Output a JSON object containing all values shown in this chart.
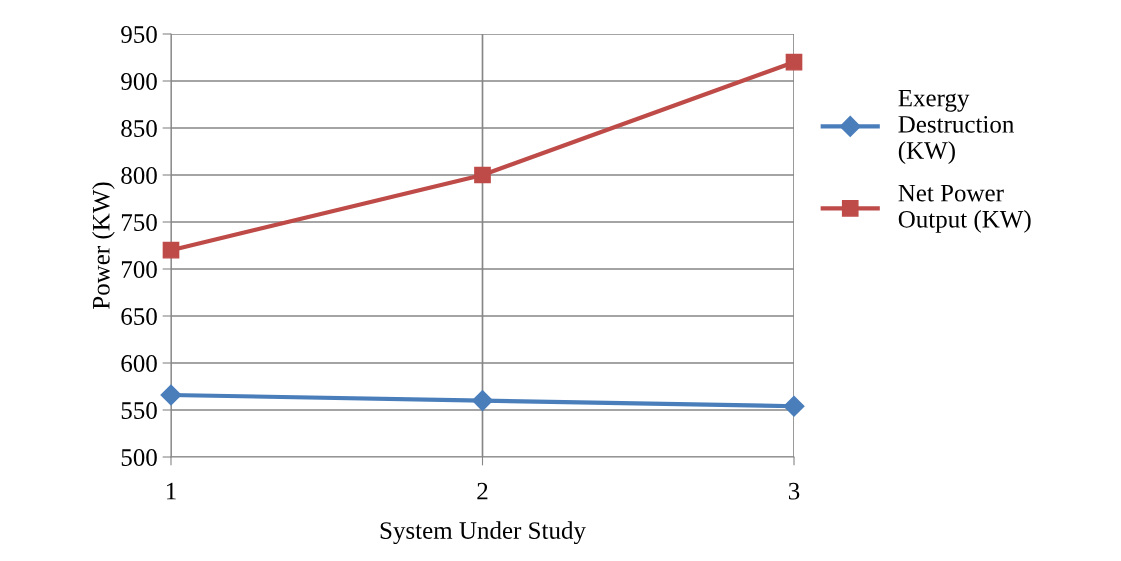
{
  "chart_data": {
    "type": "line",
    "xlabel": "System Under Study",
    "ylabel": "Power (KW)",
    "categories": [
      "1",
      "2",
      "3"
    ],
    "series": [
      {
        "name": "Exergy\nDestruction\n(KW)",
        "color": "#4a7ebb",
        "values": [
          566,
          560,
          554
        ],
        "marker": "diamond"
      },
      {
        "name": "Net Power\nOutput (KW)",
        "color": "#be4b48",
        "values": [
          720,
          800,
          920
        ],
        "marker": "square"
      }
    ],
    "ylim": [
      500,
      950
    ],
    "yticks": [
      500,
      550,
      600,
      650,
      700,
      750,
      800,
      850,
      900,
      950
    ],
    "grid": true,
    "legend": "right",
    "line_style": "solid"
  }
}
